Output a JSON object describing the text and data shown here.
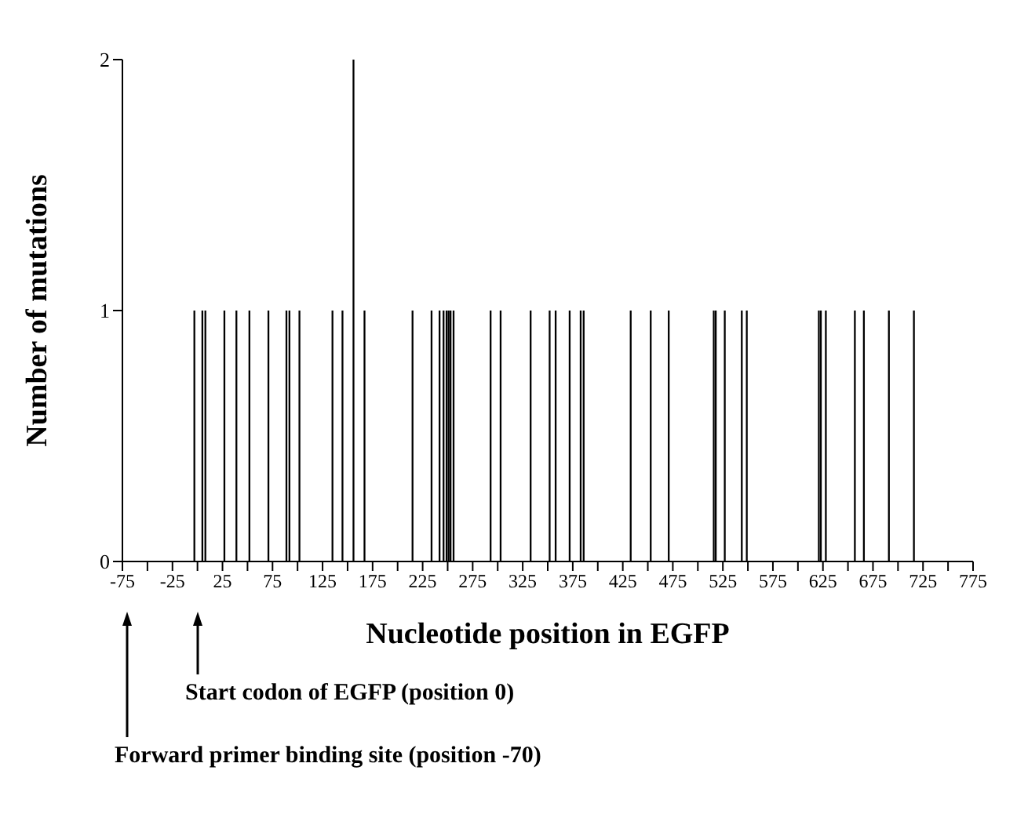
{
  "chart_data": {
    "type": "bar",
    "xlabel": "Nucleotide position in EGFP",
    "ylabel": "Number of mutations",
    "x": [
      -3,
      5,
      8,
      27,
      39,
      52,
      71,
      89,
      92,
      102,
      135,
      145,
      156,
      167,
      215,
      234,
      242,
      246,
      249,
      251,
      253,
      256,
      293,
      303,
      333,
      352,
      358,
      372,
      383,
      386,
      433,
      453,
      471,
      516,
      518,
      527,
      544,
      549,
      621,
      623,
      628,
      657,
      666,
      691,
      716
    ],
    "values": [
      1,
      1,
      1,
      1,
      1,
      1,
      1,
      1,
      1,
      1,
      1,
      1,
      2,
      1,
      1,
      1,
      1,
      1,
      1,
      1,
      1,
      1,
      1,
      1,
      1,
      1,
      1,
      1,
      1,
      1,
      1,
      1,
      1,
      1,
      1,
      1,
      1,
      1,
      1,
      1,
      1,
      1,
      1,
      1,
      1
    ],
    "color": "#000000",
    "xlim": [
      -75,
      775
    ],
    "xticks": [
      -75,
      {
        "value": -50,
        "label": null
      },
      -25,
      {
        "value": 0,
        "label": null
      },
      25,
      {
        "value": 50,
        "label": null
      },
      75,
      {
        "value": 100,
        "label": null
      },
      125,
      {
        "value": 150,
        "label": null
      },
      175,
      {
        "value": 200,
        "label": null
      },
      225,
      {
        "value": 250,
        "label": null
      },
      275,
      {
        "value": 300,
        "label": null
      },
      325,
      {
        "value": 350,
        "label": null
      },
      375,
      {
        "value": 400,
        "label": null
      },
      425,
      {
        "value": 450,
        "label": null
      },
      475,
      {
        "value": 500,
        "label": null
      },
      525,
      {
        "value": 550,
        "label": null
      },
      575,
      {
        "value": 600,
        "label": null
      },
      625,
      {
        "value": 650,
        "label": null
      },
      675,
      {
        "value": 700,
        "label": null
      },
      725,
      {
        "value": 750,
        "label": null
      },
      775
    ],
    "ylim": [
      0,
      2
    ],
    "yticks": [
      0,
      1,
      2
    ],
    "annotations": [
      "Start codon of EGFP (position 0)",
      "Forward primer binding site (position -70)"
    ]
  }
}
